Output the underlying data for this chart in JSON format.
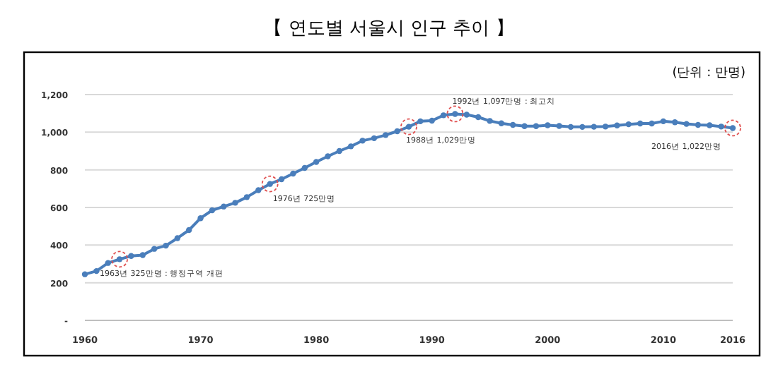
{
  "chart_data": {
    "type": "line",
    "title": "【 연도별 서울시 인구 추이 】",
    "subtitle": "(단위 : 만명)",
    "x": [
      1960,
      1961,
      1962,
      1963,
      1964,
      1965,
      1966,
      1967,
      1968,
      1969,
      1970,
      1971,
      1972,
      1973,
      1974,
      1975,
      1976,
      1977,
      1978,
      1979,
      1980,
      1981,
      1982,
      1983,
      1984,
      1985,
      1986,
      1987,
      1988,
      1989,
      1990,
      1991,
      1992,
      1993,
      1994,
      1995,
      1996,
      1997,
      1998,
      1999,
      2000,
      2001,
      2002,
      2003,
      2004,
      2005,
      2006,
      2007,
      2008,
      2009,
      2010,
      2011,
      2012,
      2013,
      2014,
      2015,
      2016
    ],
    "series": [
      {
        "color": "#4a7ebb",
        "values": [
          245,
          262,
          305,
          325,
          342,
          347,
          380,
          397,
          437,
          480,
          543,
          585,
          605,
          625,
          655,
          692,
          725,
          750,
          780,
          810,
          842,
          872,
          900,
          925,
          955,
          968,
          985,
          1005,
          1029,
          1058,
          1061,
          1090,
          1097,
          1093,
          1080,
          1060,
          1047,
          1039,
          1032,
          1032,
          1037,
          1033,
          1028,
          1028,
          1029,
          1030,
          1036,
          1042,
          1046,
          1046,
          1058,
          1053,
          1044,
          1039,
          1037,
          1030,
          1022
        ]
      }
    ],
    "xlim": [
      1960,
      2016
    ],
    "xticks": [
      1960,
      1970,
      1980,
      1990,
      2000,
      2010,
      2016
    ],
    "ylim": [
      0,
      1200
    ],
    "yticks": [
      {
        "value": 0,
        "label": "-"
      },
      {
        "value": 200,
        "label": "200"
      },
      {
        "value": 400,
        "label": "400"
      },
      {
        "value": 600,
        "label": "600"
      },
      {
        "value": 800,
        "label": "800"
      },
      {
        "value": 1000,
        "label": "1,000"
      },
      {
        "value": 1200,
        "label": "1,200"
      }
    ],
    "grid": "y",
    "marker": "circle",
    "line_style": "solid",
    "annotations": [
      {
        "text": "1963년 325만명 : 행정구역 개편",
        "x": 1963,
        "y": 325
      },
      {
        "text": "1976년 725만명",
        "x": 1976,
        "y": 725
      },
      {
        "text": "1988년 1,029만명",
        "x": 1988,
        "y": 1029
      },
      {
        "text": "1992년 1,097만명 : 최고치",
        "x": 1992,
        "y": 1097
      },
      {
        "text": "2016년 1,022만명",
        "x": 2016,
        "y": 1022
      }
    ]
  }
}
